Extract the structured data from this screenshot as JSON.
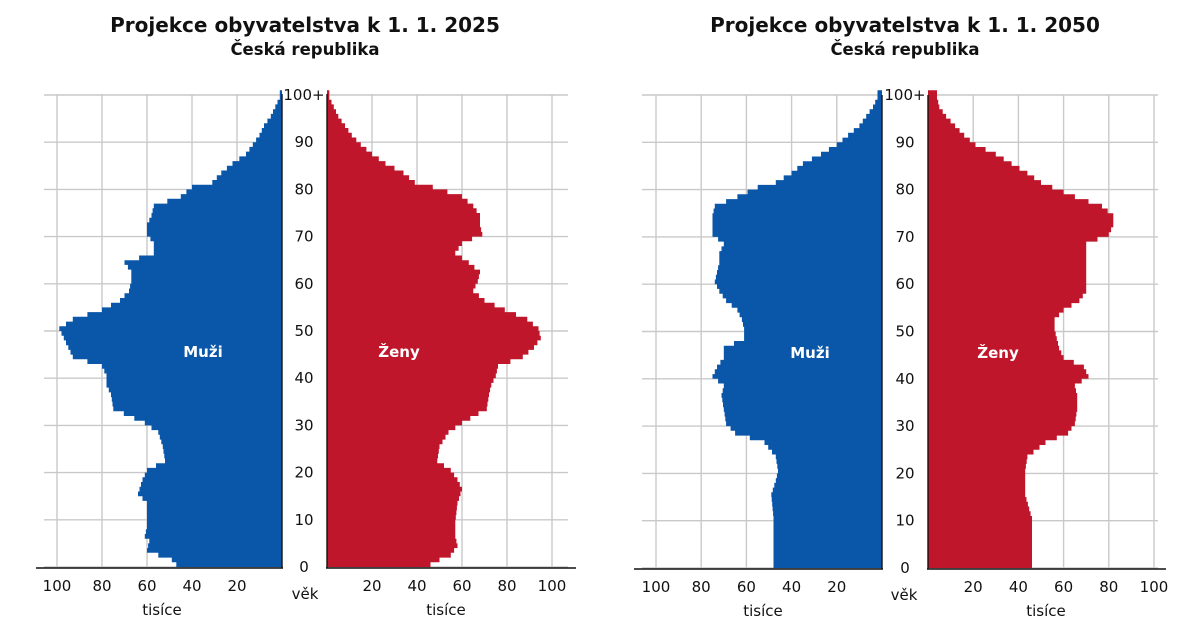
{
  "chart_data": [
    {
      "type": "population-pyramid",
      "title": "Projekce obyvatelstva k 1. 1. 2025",
      "subtitle": "Česká republika",
      "male_label": "Muži",
      "female_label": "Ženy",
      "age_axis_label": "věk",
      "value_axis_label": "tisíce",
      "age_ticks": [
        "0",
        "10",
        "20",
        "30",
        "40",
        "50",
        "60",
        "70",
        "80",
        "90",
        "100+"
      ],
      "male_ticks": [
        "100",
        "80",
        "60",
        "40",
        "20"
      ],
      "female_ticks": [
        "20",
        "40",
        "60",
        "80",
        "100"
      ],
      "xlim": [
        0,
        110
      ],
      "age_groups": 101,
      "colors": {
        "male": "#0a56a8",
        "female": "#c0162b"
      },
      "grid": true,
      "male": [
        [
          0,
          47
        ],
        [
          1,
          49
        ],
        [
          2,
          55
        ],
        [
          3,
          60
        ],
        [
          5,
          59
        ],
        [
          6,
          61
        ],
        [
          8,
          60
        ],
        [
          10,
          60
        ],
        [
          13,
          60
        ],
        [
          15,
          64
        ],
        [
          18,
          62
        ],
        [
          20,
          60
        ],
        [
          22,
          52
        ],
        [
          25,
          53
        ],
        [
          28,
          55
        ],
        [
          30,
          61
        ],
        [
          33,
          75
        ],
        [
          36,
          76
        ],
        [
          38,
          78
        ],
        [
          40,
          78
        ],
        [
          42,
          80
        ],
        [
          44,
          93
        ],
        [
          46,
          95
        ],
        [
          48,
          97
        ],
        [
          50,
          99
        ],
        [
          52,
          93
        ],
        [
          54,
          80
        ],
        [
          56,
          72
        ],
        [
          58,
          68
        ],
        [
          60,
          67
        ],
        [
          62,
          67
        ],
        [
          64,
          70
        ],
        [
          66,
          57
        ],
        [
          68,
          57
        ],
        [
          70,
          60
        ],
        [
          72,
          60
        ],
        [
          74,
          58
        ],
        [
          76,
          57
        ],
        [
          78,
          45
        ],
        [
          80,
          40
        ],
        [
          81,
          31
        ],
        [
          83,
          27
        ],
        [
          85,
          22
        ],
        [
          87,
          16
        ],
        [
          89,
          13
        ],
        [
          91,
          10
        ],
        [
          93,
          8
        ],
        [
          95,
          5
        ],
        [
          97,
          3
        ],
        [
          99,
          1
        ],
        [
          100,
          1
        ]
      ],
      "female": [
        [
          0,
          46
        ],
        [
          1,
          50
        ],
        [
          2,
          55
        ],
        [
          4,
          58
        ],
        [
          6,
          57
        ],
        [
          9,
          57
        ],
        [
          13,
          58
        ],
        [
          16,
          60
        ],
        [
          18,
          58
        ],
        [
          20,
          55
        ],
        [
          22,
          49
        ],
        [
          25,
          50
        ],
        [
          28,
          54
        ],
        [
          30,
          60
        ],
        [
          33,
          71
        ],
        [
          36,
          72
        ],
        [
          38,
          73
        ],
        [
          40,
          75
        ],
        [
          42,
          76
        ],
        [
          44,
          87
        ],
        [
          46,
          92
        ],
        [
          48,
          95
        ],
        [
          50,
          94
        ],
        [
          52,
          89
        ],
        [
          54,
          79
        ],
        [
          56,
          70
        ],
        [
          58,
          65
        ],
        [
          60,
          67
        ],
        [
          62,
          68
        ],
        [
          64,
          63
        ],
        [
          66,
          57
        ],
        [
          68,
          60
        ],
        [
          70,
          69
        ],
        [
          72,
          68
        ],
        [
          74,
          68
        ],
        [
          76,
          65
        ],
        [
          78,
          60
        ],
        [
          80,
          47
        ],
        [
          81,
          39
        ],
        [
          83,
          34
        ],
        [
          85,
          26
        ],
        [
          87,
          20
        ],
        [
          89,
          15
        ],
        [
          91,
          11
        ],
        [
          93,
          8
        ],
        [
          95,
          5
        ],
        [
          97,
          3
        ],
        [
          99,
          1
        ],
        [
          100,
          1
        ]
      ]
    },
    {
      "type": "population-pyramid",
      "title": "Projekce obyvatelstva k 1. 1. 2050",
      "subtitle": "Česká republika",
      "male_label": "Muži",
      "female_label": "Ženy",
      "age_axis_label": "věk",
      "value_axis_label": "tisíce",
      "age_ticks": [
        "0",
        "10",
        "20",
        "30",
        "40",
        "50",
        "60",
        "70",
        "80",
        "90",
        "100+"
      ],
      "male_ticks": [
        "100",
        "80",
        "60",
        "40",
        "20"
      ],
      "female_ticks": [
        "20",
        "40",
        "60",
        "80",
        "100"
      ],
      "xlim": [
        0,
        110
      ],
      "age_groups": 101,
      "colors": {
        "male": "#0a56a8",
        "female": "#c0162b"
      },
      "grid": true,
      "male": [
        [
          0,
          48
        ],
        [
          5,
          48
        ],
        [
          10,
          48
        ],
        [
          15,
          49
        ],
        [
          18,
          47
        ],
        [
          20,
          46
        ],
        [
          23,
          47
        ],
        [
          26,
          52
        ],
        [
          28,
          65
        ],
        [
          30,
          69
        ],
        [
          33,
          70
        ],
        [
          36,
          71
        ],
        [
          38,
          70
        ],
        [
          40,
          75
        ],
        [
          42,
          73
        ],
        [
          44,
          70
        ],
        [
          46,
          70
        ],
        [
          48,
          61
        ],
        [
          50,
          61
        ],
        [
          52,
          62
        ],
        [
          54,
          64
        ],
        [
          56,
          69
        ],
        [
          58,
          72
        ],
        [
          60,
          74
        ],
        [
          62,
          73
        ],
        [
          64,
          72
        ],
        [
          66,
          72
        ],
        [
          68,
          70
        ],
        [
          70,
          75
        ],
        [
          72,
          75
        ],
        [
          74,
          75
        ],
        [
          76,
          74
        ],
        [
          78,
          64
        ],
        [
          80,
          55
        ],
        [
          81,
          47
        ],
        [
          83,
          40
        ],
        [
          85,
          35
        ],
        [
          87,
          27
        ],
        [
          89,
          20
        ],
        [
          91,
          15
        ],
        [
          93,
          10
        ],
        [
          95,
          7
        ],
        [
          97,
          4
        ],
        [
          99,
          2
        ],
        [
          100,
          2
        ]
      ],
      "female": [
        [
          0,
          46
        ],
        [
          5,
          46
        ],
        [
          10,
          46
        ],
        [
          15,
          43
        ],
        [
          18,
          43
        ],
        [
          20,
          43
        ],
        [
          23,
          44
        ],
        [
          26,
          52
        ],
        [
          28,
          62
        ],
        [
          30,
          65
        ],
        [
          33,
          66
        ],
        [
          36,
          66
        ],
        [
          38,
          65
        ],
        [
          40,
          71
        ],
        [
          42,
          69
        ],
        [
          44,
          60
        ],
        [
          46,
          58
        ],
        [
          48,
          57
        ],
        [
          50,
          56
        ],
        [
          52,
          56
        ],
        [
          54,
          60
        ],
        [
          56,
          67
        ],
        [
          58,
          70
        ],
        [
          60,
          70
        ],
        [
          62,
          70
        ],
        [
          64,
          70
        ],
        [
          66,
          70
        ],
        [
          68,
          70
        ],
        [
          70,
          80
        ],
        [
          72,
          82
        ],
        [
          74,
          82
        ],
        [
          76,
          77
        ],
        [
          78,
          65
        ],
        [
          80,
          55
        ],
        [
          81,
          50
        ],
        [
          83,
          44
        ],
        [
          85,
          37
        ],
        [
          87,
          30
        ],
        [
          89,
          21
        ],
        [
          91,
          16
        ],
        [
          93,
          12
        ],
        [
          95,
          8
        ],
        [
          97,
          5
        ],
        [
          99,
          4
        ],
        [
          100,
          4
        ]
      ]
    }
  ]
}
